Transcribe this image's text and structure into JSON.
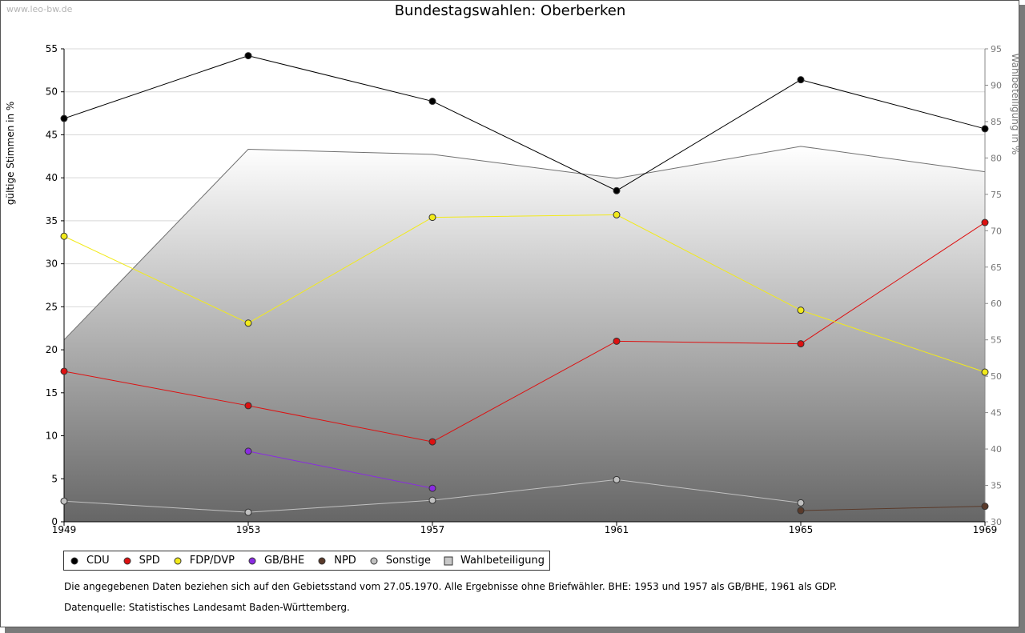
{
  "watermark": "www.leo-bw.de",
  "title": "Bundestagswahlen: Oberberken",
  "notes": {
    "data_note": "Die angegebenen Daten beziehen sich auf den Gebietsstand vom 27.05.1970. Alle Ergebnisse ohne Briefwähler. BHE: 1953 und 1957 als GB/BHE, 1961 als GDP.",
    "source_note": "Datenquelle: Statistisches Landesamt Baden-Württemberg."
  },
  "chart_data": {
    "type": "line",
    "title": "Bundestagswahlen: Oberberken",
    "x": [
      "1949",
      "1953",
      "1957",
      "1961",
      "1965",
      "1969"
    ],
    "ylabel": "gültige Stimmen in %",
    "ylabel_right": "Wahlbeteiligung in %",
    "ylim": [
      0,
      55
    ],
    "yticks": [
      0,
      5,
      10,
      15,
      20,
      25,
      30,
      35,
      40,
      45,
      50,
      55
    ],
    "ylim_right": [
      30,
      95
    ],
    "yticks_right": [
      30,
      35,
      40,
      45,
      50,
      55,
      60,
      65,
      70,
      75,
      80,
      85,
      90,
      95
    ],
    "grid": true,
    "legend_position": "bottom",
    "series": [
      {
        "name": "CDU",
        "color": "#000000",
        "values": [
          46.9,
          54.2,
          48.9,
          38.5,
          51.4,
          45.7
        ]
      },
      {
        "name": "SPD",
        "color": "#dd1111",
        "values": [
          17.5,
          13.5,
          9.3,
          21.0,
          20.7,
          34.8
        ]
      },
      {
        "name": "FDP/DVP",
        "color": "#f2ea1a",
        "values": [
          33.2,
          23.1,
          35.4,
          35.7,
          24.6,
          17.4
        ]
      },
      {
        "name": "GB/BHE",
        "color": "#8a2be2",
        "values": [
          null,
          8.2,
          3.9,
          null,
          null,
          null
        ]
      },
      {
        "name": "NPD",
        "color": "#5a3a2a",
        "values": [
          null,
          null,
          null,
          null,
          1.3,
          1.8
        ]
      },
      {
        "name": "Sonstige",
        "color": "#c0c0c0",
        "values": [
          2.4,
          1.1,
          2.5,
          4.9,
          2.2,
          null
        ]
      }
    ],
    "area_series": {
      "name": "Wahlbeteiligung",
      "axis": "right",
      "values": [
        55.0,
        81.2,
        80.5,
        77.2,
        81.6,
        78.1
      ]
    }
  }
}
